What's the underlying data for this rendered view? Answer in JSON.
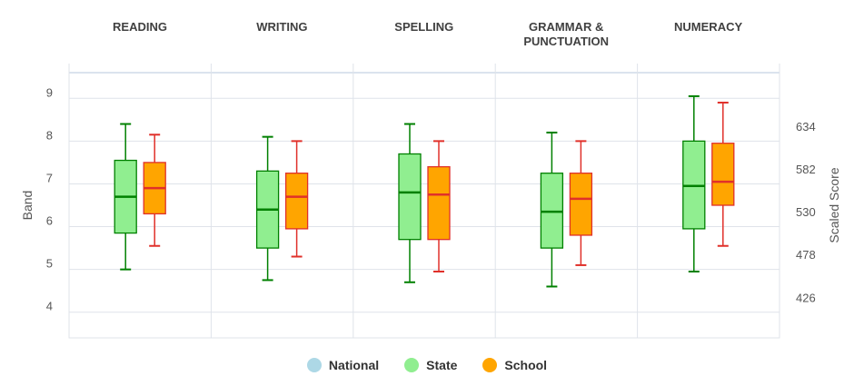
{
  "chart_data": {
    "type": "boxplot",
    "categories": [
      "READING",
      "WRITING",
      "SPELLING",
      "GRAMMAR &\nPUNCTUATION",
      "NUMERACY"
    ],
    "ylabel": "Band",
    "y2label": "Scaled Score",
    "ylim": [
      3.4,
      9.6
    ],
    "yticks": [
      4,
      5,
      6,
      7,
      8,
      9
    ],
    "y2ticks": [
      {
        "value": 634,
        "band": 8.35
      },
      {
        "value": 582,
        "band": 7.35
      },
      {
        "value": 530,
        "band": 6.35
      },
      {
        "value": 478,
        "band": 5.35
      },
      {
        "value": 426,
        "band": 4.35
      }
    ],
    "grid": true,
    "legend": "bottom-center",
    "series": [
      {
        "name": "National",
        "color": "#add8e6",
        "boxes": []
      },
      {
        "name": "State",
        "color": "#90ee90",
        "stroke": "#008000",
        "boxes": [
          {
            "min": 5.0,
            "q1": 5.85,
            "median": 6.7,
            "q3": 7.55,
            "max": 8.4
          },
          {
            "min": 4.75,
            "q1": 5.5,
            "median": 6.4,
            "q3": 7.3,
            "max": 8.1
          },
          {
            "min": 4.7,
            "q1": 5.7,
            "median": 6.8,
            "q3": 7.7,
            "max": 8.4
          },
          {
            "min": 4.6,
            "q1": 5.5,
            "median": 6.35,
            "q3": 7.25,
            "max": 8.2
          },
          {
            "min": 4.95,
            "q1": 5.95,
            "median": 6.95,
            "q3": 8.0,
            "max": 9.05
          }
        ]
      },
      {
        "name": "School",
        "color": "#ffa500",
        "stroke": "#e0302a",
        "boxes": [
          {
            "min": 5.55,
            "q1": 6.3,
            "median": 6.9,
            "q3": 7.5,
            "max": 8.15
          },
          {
            "min": 5.3,
            "q1": 5.95,
            "median": 6.7,
            "q3": 7.25,
            "max": 8.0
          },
          {
            "min": 4.95,
            "q1": 5.7,
            "median": 6.75,
            "q3": 7.4,
            "max": 8.0
          },
          {
            "min": 5.1,
            "q1": 5.8,
            "median": 6.65,
            "q3": 7.25,
            "max": 8.0
          },
          {
            "min": 5.55,
            "q1": 6.5,
            "median": 7.05,
            "q3": 7.95,
            "max": 8.9
          }
        ]
      }
    ]
  }
}
